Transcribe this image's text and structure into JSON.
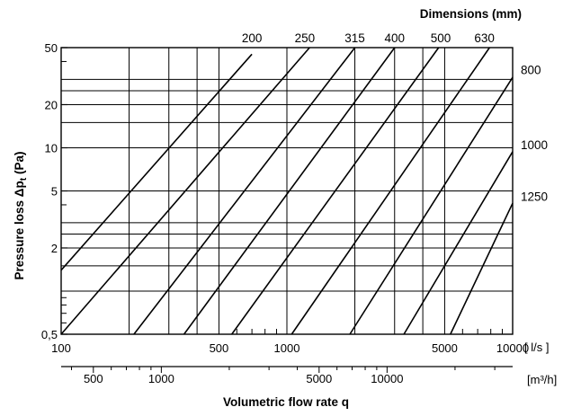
{
  "chart_data": {
    "type": "line",
    "xscale": "log",
    "yscale": "log",
    "xlim": [
      100,
      10000
    ],
    "ylim": [
      0.5,
      50
    ],
    "xlabel": "",
    "ylabel": "Pressure loss Δp",
    "ylabel_subscript": "t",
    "ylabel_unit": " (Pa)",
    "x_unit": "[ l/s ]",
    "secondary_x_label": "Volumetric flow rate q",
    "secondary_x_unit": "[m³/h]",
    "secondary_x_factor": 3.6,
    "legend_title": "Dimensions (mm)",
    "grid": true,
    "x_tick_labels": [
      {
        "value": 100,
        "label": "100"
      },
      {
        "value": 500,
        "label": "500"
      },
      {
        "value": 1000,
        "label": "1000"
      },
      {
        "value": 5000,
        "label": "5000"
      },
      {
        "value": 10000,
        "label": "10000"
      }
    ],
    "x_grid_lines": [
      200,
      300,
      400,
      500,
      1000,
      2000,
      3000,
      4000,
      5000
    ],
    "x_minor_ticks": [
      600,
      700,
      800,
      900,
      6000,
      7000,
      8000,
      9000
    ],
    "y_tick_labels": [
      {
        "value": 0.5,
        "label": "0,5"
      },
      {
        "value": 2,
        "label": "2"
      },
      {
        "value": 5,
        "label": "5"
      },
      {
        "value": 10,
        "label": "10"
      },
      {
        "value": 20,
        "label": "20"
      },
      {
        "value": 50,
        "label": "50"
      }
    ],
    "y_grid_lines": [
      1,
      1.5,
      2,
      2.5,
      3,
      5,
      10,
      15,
      20,
      25,
      30
    ],
    "y_minor_ticks": [
      0.6,
      0.7,
      0.8,
      0.9,
      4,
      40
    ],
    "secondary_x_tick_labels": [
      {
        "value": 500,
        "label": "500"
      },
      {
        "value": 1000,
        "label": "1000"
      },
      {
        "value": 5000,
        "label": "5000"
      },
      {
        "value": 10000,
        "label": "10000"
      }
    ],
    "secondary_x_minor_ticks": [
      400,
      600,
      700,
      800,
      900,
      2000,
      3000,
      4000,
      6000,
      7000,
      8000,
      9000,
      20000,
      30000
    ],
    "series": [
      {
        "name": "200",
        "points": [
          [
            100,
            1.4
          ],
          [
            700,
            45
          ]
        ],
        "label_x": 700
      },
      {
        "name": "250",
        "points": [
          [
            100,
            0.5
          ],
          [
            1260,
            50
          ]
        ],
        "label_x": 1200
      },
      {
        "name": "315",
        "points": [
          [
            210,
            0.5
          ],
          [
            2000,
            50
          ]
        ],
        "label_x": 2000
      },
      {
        "name": "400",
        "points": [
          [
            350,
            0.5
          ],
          [
            3000,
            50
          ]
        ],
        "label_x": 3000
      },
      {
        "name": "500",
        "points": [
          [
            570,
            0.5
          ],
          [
            4700,
            50
          ]
        ],
        "label_x": 4800
      },
      {
        "name": "630",
        "points": [
          [
            1050,
            0.5
          ],
          [
            7900,
            50
          ]
        ],
        "label_x": 7500
      },
      {
        "name": "800",
        "points": [
          [
            1900,
            0.5
          ],
          [
            10000,
            31
          ]
        ],
        "label_y": 35
      },
      {
        "name": "1000",
        "points": [
          [
            3300,
            0.5
          ],
          [
            10000,
            9.4
          ]
        ],
        "label_y": 10.5
      },
      {
        "name": "1250",
        "points": [
          [
            5300,
            0.5
          ],
          [
            10000,
            4.1
          ]
        ],
        "label_y": 4.6
      }
    ]
  }
}
